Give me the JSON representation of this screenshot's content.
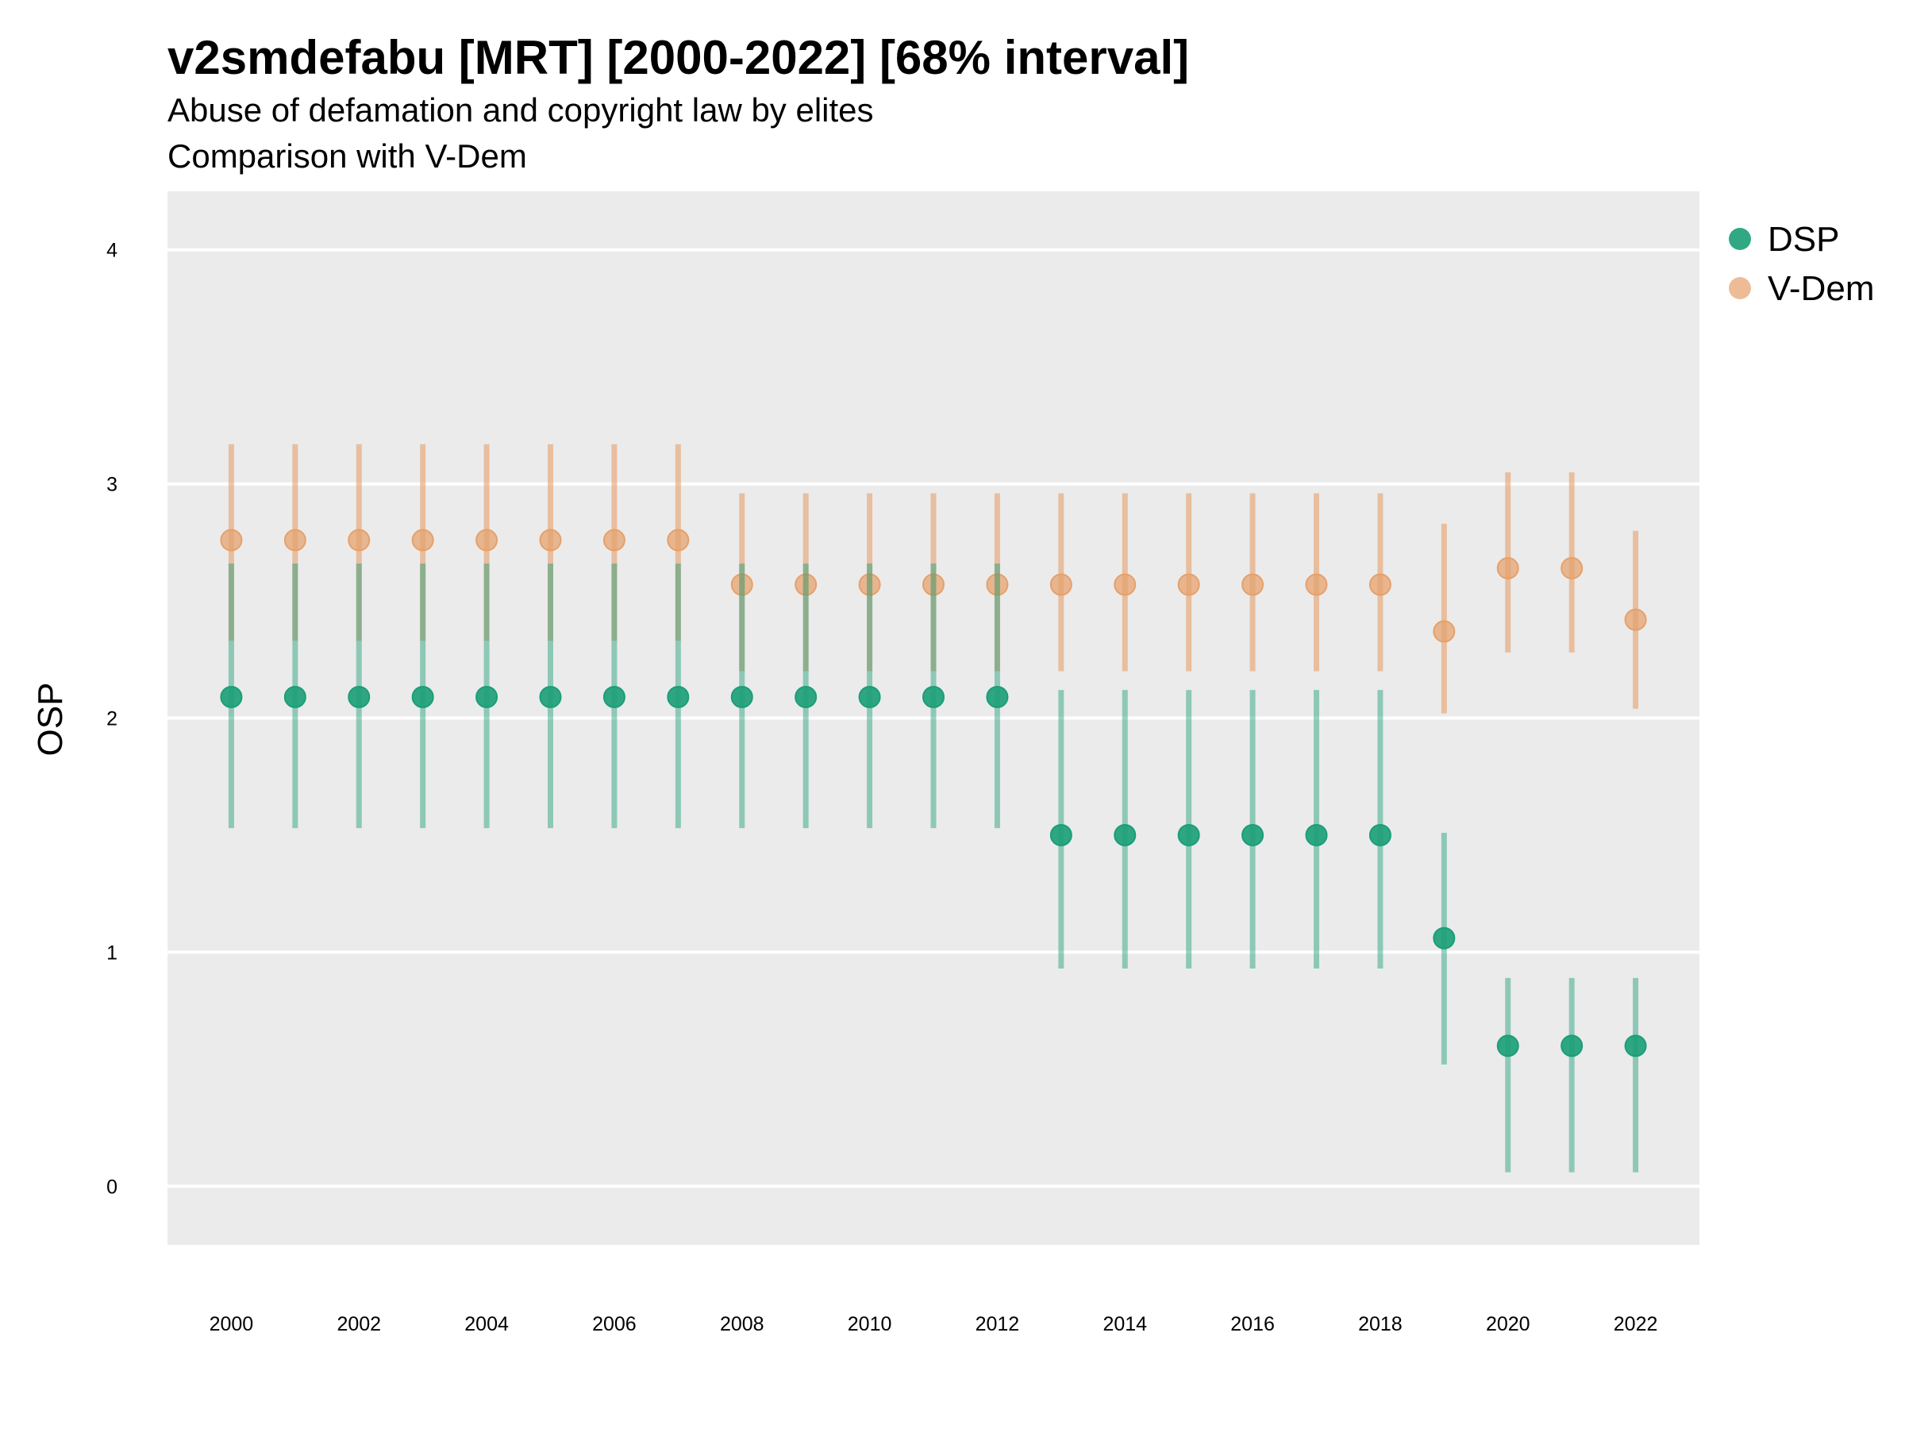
{
  "title": "v2smdefabu [MRT] [2000-2022] [68% interval]",
  "subtitle_1": "Abuse of defamation and copyright law by elites",
  "subtitle_2": "Comparison with V-Dem",
  "colors": {
    "DSP": "#1b9e77",
    "V-Dem": "#e6a06a",
    "panel": "#ebebeb",
    "grid": "#ffffff"
  },
  "chart_data": {
    "type": "scatter",
    "title": "v2smdefabu [MRT] [2000-2022] [68% interval]",
    "subtitle": "Abuse of defamation and copyright law by elites / Comparison with V-Dem",
    "xlabel": "",
    "ylabel": "OSP",
    "xlim": [
      1999,
      2023
    ],
    "ylim": [
      -0.25,
      4.25
    ],
    "yticks": [
      0,
      1,
      2,
      3,
      4
    ],
    "xticks": [
      2000,
      2002,
      2004,
      2006,
      2008,
      2010,
      2012,
      2014,
      2016,
      2018,
      2020,
      2022
    ],
    "legend_position": "right",
    "grid": true,
    "x": [
      2000,
      2001,
      2002,
      2003,
      2004,
      2005,
      2006,
      2007,
      2008,
      2009,
      2010,
      2011,
      2012,
      2013,
      2014,
      2015,
      2016,
      2017,
      2018,
      2019,
      2020,
      2021,
      2022
    ],
    "series": [
      {
        "name": "DSP",
        "values": [
          2.09,
          2.09,
          2.09,
          2.09,
          2.09,
          2.09,
          2.09,
          2.09,
          2.09,
          2.09,
          2.09,
          2.09,
          2.09,
          1.5,
          1.5,
          1.5,
          1.5,
          1.5,
          1.5,
          1.06,
          0.6,
          0.6,
          0.6
        ],
        "lower": [
          1.53,
          1.53,
          1.53,
          1.53,
          1.53,
          1.53,
          1.53,
          1.53,
          1.53,
          1.53,
          1.53,
          1.53,
          1.53,
          0.93,
          0.93,
          0.93,
          0.93,
          0.93,
          0.93,
          0.52,
          0.06,
          0.06,
          0.06
        ],
        "upper": [
          2.66,
          2.66,
          2.66,
          2.66,
          2.66,
          2.66,
          2.66,
          2.66,
          2.66,
          2.66,
          2.66,
          2.66,
          2.66,
          2.12,
          2.12,
          2.12,
          2.12,
          2.12,
          2.12,
          1.51,
          0.89,
          0.89,
          0.89
        ]
      },
      {
        "name": "V-Dem",
        "values": [
          2.76,
          2.76,
          2.76,
          2.76,
          2.76,
          2.76,
          2.76,
          2.76,
          2.57,
          2.57,
          2.57,
          2.57,
          2.57,
          2.57,
          2.57,
          2.57,
          2.57,
          2.57,
          2.57,
          2.37,
          2.64,
          2.64,
          2.42
        ],
        "lower": [
          2.33,
          2.33,
          2.33,
          2.33,
          2.33,
          2.33,
          2.33,
          2.33,
          2.2,
          2.2,
          2.2,
          2.2,
          2.2,
          2.2,
          2.2,
          2.2,
          2.2,
          2.2,
          2.2,
          2.02,
          2.28,
          2.28,
          2.04
        ],
        "upper": [
          3.17,
          3.17,
          3.17,
          3.17,
          3.17,
          3.17,
          3.17,
          3.17,
          2.96,
          2.96,
          2.96,
          2.96,
          2.96,
          2.96,
          2.96,
          2.96,
          2.96,
          2.96,
          2.96,
          2.83,
          3.05,
          3.05,
          2.8
        ]
      }
    ]
  }
}
